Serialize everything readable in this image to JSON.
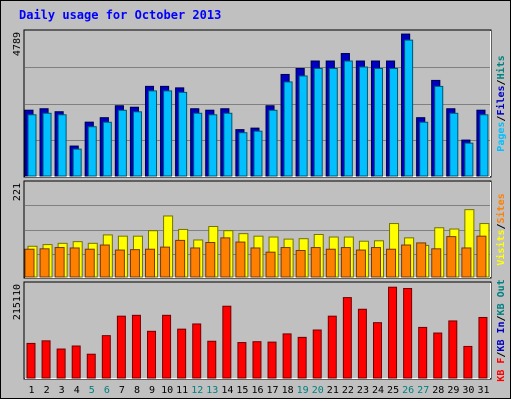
{
  "chart_data": {
    "type": "bar",
    "title": "Daily usage for October 2013",
    "categories": [
      "1",
      "2",
      "3",
      "4",
      "5",
      "6",
      "7",
      "8",
      "9",
      "10",
      "11",
      "12",
      "13",
      "14",
      "15",
      "16",
      "17",
      "18",
      "19",
      "20",
      "21",
      "22",
      "23",
      "24",
      "25",
      "26",
      "27",
      "28",
      "29",
      "30",
      "31"
    ],
    "weekend_categories": [
      "5",
      "6",
      "12",
      "13",
      "19",
      "20",
      "26",
      "27"
    ],
    "panels": [
      {
        "max_label": "4789",
        "ylim": [
          0,
          4789
        ],
        "grid": true,
        "axis_labels": [
          {
            "text": "Pages",
            "color": "#00c0ff"
          },
          {
            "text": "/",
            "color": "#000000"
          },
          {
            "text": "Files",
            "color": "#0000c0"
          },
          {
            "text": "/",
            "color": "#000000"
          },
          {
            "text": "Hits",
            "color": "#008080"
          }
        ],
        "series": [
          {
            "name": "Hits",
            "color": "#008080",
            "values": [
              2200,
              2250,
              2150,
              1000,
              1800,
              1950,
              2350,
              2300,
              3000,
              3000,
              2950,
              2250,
              2200,
              2250,
              1550,
              1600,
              2350,
              3400,
              3600,
              3850,
              3850,
              4100,
              3850,
              3850,
              3850,
              4750,
              1950,
              3200,
              2250,
              1200,
              2200
            ]
          },
          {
            "name": "Files",
            "color": "#0000c0",
            "values": [
              2200,
              2250,
              2150,
              1000,
              1800,
              1950,
              2350,
              2300,
              3000,
              3000,
              2950,
              2250,
              2200,
              2250,
              1550,
              1600,
              2350,
              3400,
              3600,
              3850,
              3850,
              4100,
              3850,
              3850,
              3850,
              4750,
              1950,
              3200,
              2250,
              1200,
              2200
            ]
          },
          {
            "name": "Pages",
            "color": "#00c0ff",
            "values": [
              2050,
              2100,
              2050,
              900,
              1650,
              1800,
              2200,
              2150,
              2850,
              2850,
              2800,
              2100,
              2050,
              2100,
              1450,
              1500,
              2200,
              3150,
              3350,
              3600,
              3600,
              3850,
              3650,
              3600,
              3600,
              4550,
              1800,
              3000,
              2100,
              1100,
              2050
            ]
          }
        ]
      },
      {
        "max_label": "221",
        "ylim": [
          0,
          221
        ],
        "grid": true,
        "axis_labels": [
          {
            "text": "Visits",
            "color": "#ffff00"
          },
          {
            "text": "/",
            "color": "#000000"
          },
          {
            "text": "Sites",
            "color": "#ff8000"
          }
        ],
        "series": [
          {
            "name": "Visits",
            "color": "#ffff00",
            "values": [
              73,
              77,
              80,
              84,
              80,
              100,
              97,
              97,
              110,
              145,
              113,
              88,
              120,
              110,
              103,
              97,
              95,
              90,
              91,
              101,
              95,
              95,
              85,
              86,
              127,
              93,
              75,
              117,
              114,
              160,
              127
            ]
          },
          {
            "name": "Sites",
            "color": "#ff8000",
            "values": [
              66,
              67,
              70,
              69,
              66,
              76,
              64,
              65,
              66,
              71,
              87,
              69,
              82,
              93,
              83,
              69,
              59,
              70,
              63,
              70,
              66,
              70,
              64,
              70,
              66,
              76,
              81,
              67,
              96,
              69,
              97
            ]
          }
        ]
      },
      {
        "max_label": "215110",
        "ylim": [
          0,
          215110
        ],
        "grid": false,
        "axis_labels": [
          {
            "text": "KB F",
            "color": "#ff0000"
          },
          {
            "text": "/",
            "color": "#000000"
          },
          {
            "text": "KB In",
            "color": "#0000c0"
          },
          {
            "text": "/",
            "color": "#000000"
          },
          {
            "text": "KB Out",
            "color": "#008080"
          }
        ],
        "series": [
          {
            "name": "KB F",
            "color": "#ff0000",
            "values": [
              80000,
              86000,
              67000,
              74000,
              55000,
              98000,
              143000,
              145000,
              108000,
              145000,
              113000,
              125000,
              85000,
              166000,
              82000,
              84000,
              83000,
              102000,
              94000,
              111000,
              143000,
              186000,
              159000,
              128000,
              210000,
              207000,
              117000,
              104000,
              132000,
              73000,
              140000
            ]
          }
        ]
      }
    ]
  }
}
